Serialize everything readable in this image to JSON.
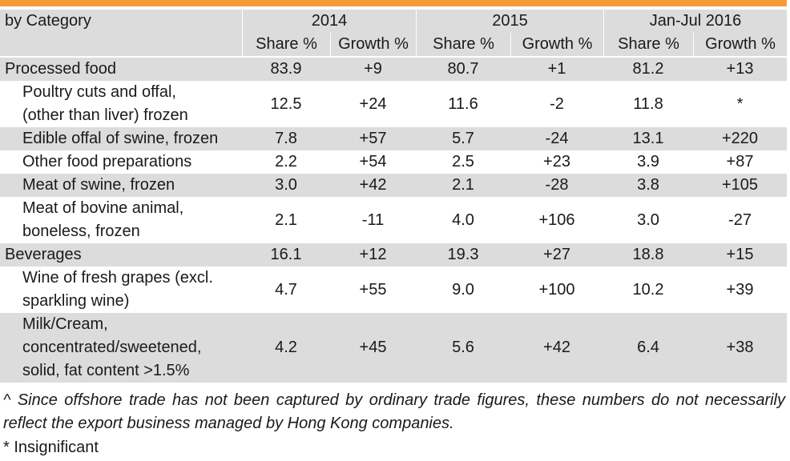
{
  "accent_color": "#f79a3a",
  "header": {
    "label": "by Category",
    "groups": [
      "2014",
      "2015",
      "Jan-Jul 2016"
    ],
    "subheaders": [
      "Share %",
      "Growth %",
      "Share %",
      "Growth %",
      "Share %",
      "Growth %"
    ]
  },
  "rows": [
    {
      "label": "Processed food",
      "values": [
        "83.9",
        "+9",
        "80.7",
        "+1",
        "81.2",
        "+13"
      ]
    },
    {
      "label_lines": [
        "Poultry cuts and offal,",
        "(other than liver) frozen"
      ],
      "values": [
        "12.5",
        "+24",
        "11.6",
        "-2",
        "11.8",
        "*"
      ]
    },
    {
      "label": "Edible offal of swine, frozen",
      "values": [
        "7.8",
        "+57",
        "5.7",
        "-24",
        "13.1",
        "+220"
      ]
    },
    {
      "label": "Other food preparations",
      "values": [
        "2.2",
        "+54",
        "2.5",
        "+23",
        "3.9",
        "+87"
      ]
    },
    {
      "label": "Meat of swine, frozen",
      "values": [
        "3.0",
        "+42",
        "2.1",
        "-28",
        "3.8",
        "+105"
      ]
    },
    {
      "label_lines": [
        "Meat of bovine animal,",
        "boneless, frozen"
      ],
      "values": [
        "2.1",
        "-11",
        "4.0",
        "+106",
        "3.0",
        "-27"
      ]
    },
    {
      "label": "Beverages",
      "values": [
        "16.1",
        "+12",
        "19.3",
        "+27",
        "18.8",
        "+15"
      ]
    },
    {
      "label_lines": [
        "Wine of fresh grapes (excl.",
        "sparkling wine)"
      ],
      "values": [
        "4.7",
        "+55",
        "9.0",
        "+100",
        "10.2",
        "+39"
      ]
    },
    {
      "label_lines": [
        "Milk/Cream,",
        "concentrated/sweetened,",
        "solid, fat content >1.5%"
      ],
      "values": [
        "4.2",
        "+45",
        "5.6",
        "+42",
        "6.4",
        "+38"
      ]
    }
  ],
  "notes": {
    "caret": "^ Since offshore trade has not been captured by ordinary trade figures, these numbers do not necessarily reflect the export business managed by Hong Kong companies.",
    "asterisk": "* Insignificant"
  }
}
